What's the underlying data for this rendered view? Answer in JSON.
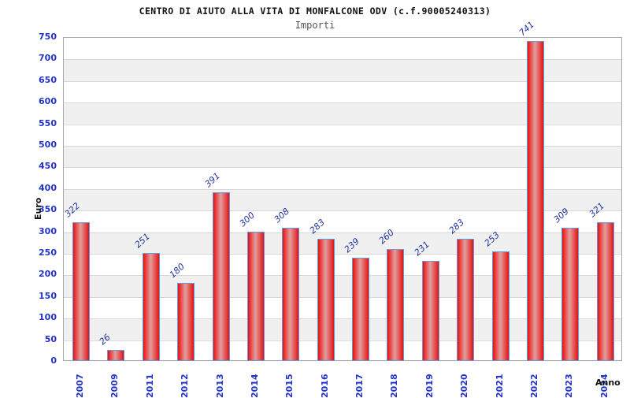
{
  "chart_data": {
    "type": "bar",
    "title": "CENTRO DI AIUTO ALLA VITA DI MONFALCONE ODV (c.f.90005240313)",
    "subtitle": "Importi",
    "xlabel": "Anno",
    "ylabel": "Euro",
    "categories": [
      "2007",
      "2009",
      "2011",
      "2012",
      "2013",
      "2014",
      "2015",
      "2016",
      "2017",
      "2018",
      "2019",
      "2020",
      "2021",
      "2022",
      "2023",
      "2024"
    ],
    "values": [
      322,
      26,
      251,
      180,
      391,
      300,
      308,
      283,
      239,
      260,
      231,
      283,
      253,
      741,
      309,
      321
    ],
    "ylim": [
      0,
      750
    ],
    "ytick_step": 50,
    "grid": "horizontal-bands",
    "legend": "none",
    "colors": {
      "bar_fill_edge": "#e01414",
      "bar_fill_mid": "#dda0a0",
      "bar_border": "#5e9ce0",
      "axis_tick_text": "#2233cc",
      "value_label_text": "#223399",
      "band_white": "#ffffff",
      "band_gray": "#f0f0f0",
      "gridline": "#d8d8d8",
      "plot_border": "#a9a9a9",
      "title_text": "#111111",
      "subtitle_text": "#555555",
      "axis_title_text": "#111111",
      "background": "#ffffff"
    }
  }
}
